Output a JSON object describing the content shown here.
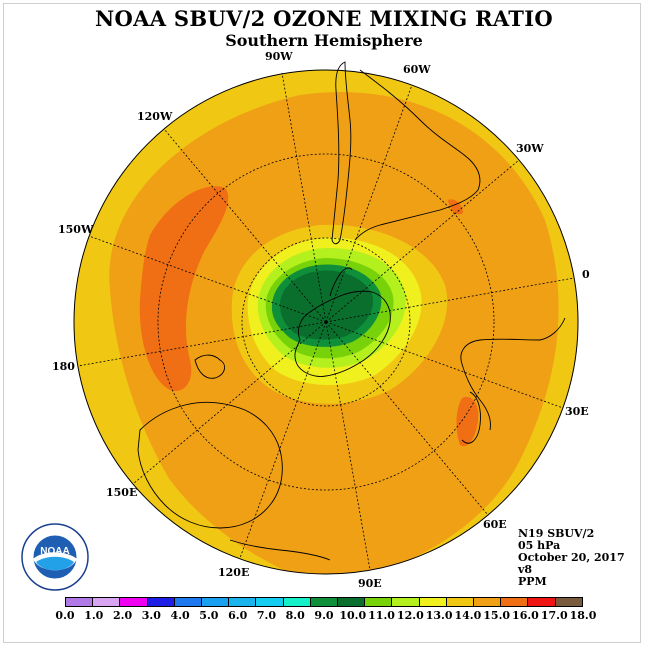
{
  "title": "NOAA SBUV/2 OZONE MIXING RATIO",
  "subtitle": "Southern Hemisphere",
  "longitude_labels": [
    "90W",
    "60W",
    "30W",
    "0",
    "30E",
    "60E",
    "90E",
    "120E",
    "150E",
    "180",
    "150W",
    "120W"
  ],
  "info": {
    "satellite": "N19 SBUV/2",
    "level": "05 hPa",
    "date": "October 20, 2017",
    "version": "v8",
    "units": "PPM"
  },
  "colorbar": {
    "ticks": [
      "0.0",
      "1.0",
      "2.0",
      "3.0",
      "4.0",
      "5.0",
      "6.0",
      "7.0",
      "8.0",
      "9.0",
      "10.0",
      "11.0",
      "12.0",
      "13.0",
      "14.0",
      "15.0",
      "16.0",
      "17.0",
      "18.0"
    ],
    "colors": [
      "#b07ae6",
      "#d9a5f0",
      "#f000f0",
      "#1e1ee6",
      "#1e78f0",
      "#19a0f0",
      "#19b4ee",
      "#14ccf0",
      "#14f0c8",
      "#0f8f3a",
      "#0a6e2d",
      "#78d20a",
      "#b4f01e",
      "#f0f01e",
      "#f0c814",
      "#f0a014",
      "#f06e14",
      "#f01414",
      "#7a5a3c"
    ]
  },
  "logo_text": "NOAA"
}
